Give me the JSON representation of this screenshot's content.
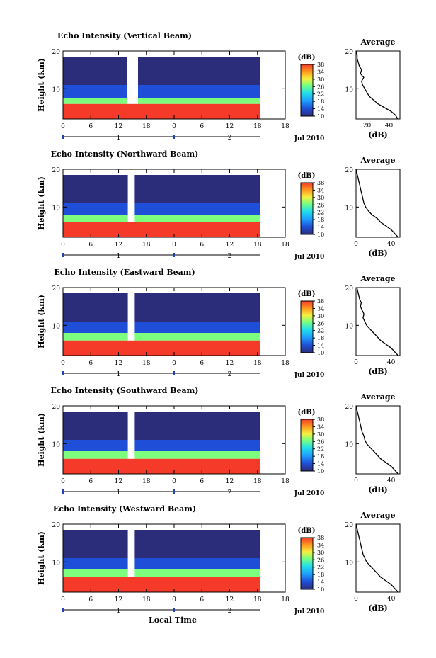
{
  "figure": {
    "xlabel_bottom": "Local Time",
    "date_label": "Jul 2010",
    "colorbar_unit": "(dB)",
    "average_title": "Average",
    "average_xlabel": "(dB)"
  },
  "chart_data": [
    {
      "type": "heatmap",
      "title": "Echo Intensity (Vertical Beam)",
      "ylabel": "Height (km)",
      "x_ticks": [
        "0",
        "6",
        "12",
        "18",
        "0",
        "6",
        "12",
        "18"
      ],
      "day_labels": [
        "1",
        "2"
      ],
      "y_ticks": [
        "10",
        "20"
      ],
      "ylim": [
        2,
        20
      ],
      "colorbar": {
        "range": [
          10,
          38
        ],
        "ticks": [
          "10",
          "14",
          "18",
          "22",
          "26",
          "30",
          "34",
          "38"
        ]
      },
      "missing_interval_hours": [
        13.8,
        16.2
      ],
      "color_bands": [
        {
          "from_km": 2,
          "to_km": 6,
          "value_db": 38
        },
        {
          "from_km": 6,
          "to_km": 7.5,
          "value_db": 26
        },
        {
          "from_km": 7.5,
          "to_km": 11,
          "value_db": 14
        },
        {
          "from_km": 11,
          "to_km": 20,
          "value_db": 10
        }
      ],
      "average_profile": {
        "x_ticks": [
          "20",
          "40"
        ],
        "xlim": [
          10,
          50
        ],
        "height_km": [
          2,
          3,
          4,
          5,
          6,
          7,
          8,
          9,
          10,
          11,
          12,
          13,
          14,
          15,
          16,
          17,
          18,
          19,
          20
        ],
        "value_db": [
          48,
          46,
          42,
          36,
          30,
          26,
          22,
          20,
          18,
          16,
          15,
          17,
          14,
          15,
          13,
          12,
          11,
          11,
          10
        ]
      }
    },
    {
      "type": "heatmap",
      "title": "Echo Intensity (Northward Beam)",
      "ylabel": "Height (km)",
      "x_ticks": [
        "0",
        "6",
        "12",
        "18",
        "0",
        "6",
        "12",
        "18"
      ],
      "day_labels": [
        "1",
        "2"
      ],
      "y_ticks": [
        "10",
        "20"
      ],
      "ylim": [
        2,
        20
      ],
      "colorbar": {
        "range": [
          10,
          38
        ],
        "ticks": [
          "10",
          "14",
          "18",
          "22",
          "26",
          "30",
          "34",
          "38"
        ]
      },
      "missing_interval_hours": [
        14.0,
        15.5
      ],
      "color_bands": [
        {
          "from_km": 2,
          "to_km": 6,
          "value_db": 38
        },
        {
          "from_km": 6,
          "to_km": 8,
          "value_db": 26
        },
        {
          "from_km": 8,
          "to_km": 11,
          "value_db": 14
        },
        {
          "from_km": 11,
          "to_km": 20,
          "value_db": 10
        }
      ],
      "average_profile": {
        "x_ticks": [
          "0",
          "40"
        ],
        "xlim": [
          0,
          50
        ],
        "height_km": [
          2,
          3,
          4,
          5,
          6,
          7,
          8,
          9,
          10,
          11,
          12,
          13,
          14,
          15,
          16,
          17,
          18,
          19,
          20
        ],
        "value_db": [
          48,
          44,
          40,
          34,
          28,
          24,
          18,
          14,
          11,
          9,
          8,
          7,
          6,
          5,
          4,
          3,
          2,
          1,
          0
        ]
      }
    },
    {
      "type": "heatmap",
      "title": "Echo Intensity (Eastward Beam)",
      "ylabel": "Height (km)",
      "x_ticks": [
        "0",
        "6",
        "12",
        "18",
        "0",
        "6",
        "12",
        "18"
      ],
      "day_labels": [
        "1",
        "2"
      ],
      "y_ticks": [
        "10",
        "20"
      ],
      "ylim": [
        2,
        20
      ],
      "colorbar": {
        "range": [
          10,
          38
        ],
        "ticks": [
          "10",
          "14",
          "18",
          "22",
          "26",
          "30",
          "34",
          "38"
        ]
      },
      "missing_interval_hours": [
        14.0,
        15.5
      ],
      "color_bands": [
        {
          "from_km": 2,
          "to_km": 6,
          "value_db": 38
        },
        {
          "from_km": 6,
          "to_km": 8,
          "value_db": 26
        },
        {
          "from_km": 8,
          "to_km": 11,
          "value_db": 14
        },
        {
          "from_km": 11,
          "to_km": 20,
          "value_db": 10
        }
      ],
      "average_profile": {
        "x_ticks": [
          "0",
          "40"
        ],
        "xlim": [
          0,
          50
        ],
        "height_km": [
          2,
          3,
          4,
          5,
          6,
          7,
          8,
          9,
          10,
          11,
          12,
          13,
          14,
          15,
          16,
          17,
          18,
          19,
          20
        ],
        "value_db": [
          48,
          44,
          40,
          34,
          28,
          24,
          20,
          16,
          12,
          10,
          8,
          9,
          7,
          5,
          6,
          4,
          3,
          2,
          1
        ]
      }
    },
    {
      "type": "heatmap",
      "title": "Echo Intensity (Southward Beam)",
      "ylabel": "Height (km)",
      "x_ticks": [
        "0",
        "6",
        "12",
        "18",
        "0",
        "6",
        "12",
        "18"
      ],
      "day_labels": [
        "1",
        "2"
      ],
      "y_ticks": [
        "10",
        "20"
      ],
      "ylim": [
        2,
        20
      ],
      "colorbar": {
        "range": [
          10,
          38
        ],
        "ticks": [
          "10",
          "14",
          "18",
          "22",
          "26",
          "30",
          "34",
          "38"
        ]
      },
      "missing_interval_hours": [
        14.0,
        15.5
      ],
      "color_bands": [
        {
          "from_km": 2,
          "to_km": 6,
          "value_db": 38
        },
        {
          "from_km": 6,
          "to_km": 8,
          "value_db": 26
        },
        {
          "from_km": 8,
          "to_km": 11,
          "value_db": 14
        },
        {
          "from_km": 11,
          "to_km": 20,
          "value_db": 10
        }
      ],
      "average_profile": {
        "x_ticks": [
          "0",
          "40"
        ],
        "xlim": [
          0,
          50
        ],
        "height_km": [
          2,
          3,
          4,
          5,
          6,
          7,
          8,
          9,
          10,
          11,
          12,
          13,
          14,
          15,
          16,
          17,
          18,
          19,
          20
        ],
        "value_db": [
          48,
          44,
          40,
          34,
          28,
          24,
          20,
          16,
          12,
          10,
          9,
          7,
          6,
          5,
          4,
          3,
          2,
          1,
          1
        ]
      }
    },
    {
      "type": "heatmap",
      "title": "Echo Intensity (Westward Beam)",
      "ylabel": "Height (km)",
      "x_ticks": [
        "0",
        "6",
        "12",
        "18",
        "0",
        "6",
        "12",
        "18"
      ],
      "day_labels": [
        "1",
        "2"
      ],
      "y_ticks": [
        "10",
        "20"
      ],
      "ylim": [
        2,
        20
      ],
      "colorbar": {
        "range": [
          10,
          38
        ],
        "ticks": [
          "10",
          "14",
          "18",
          "22",
          "26",
          "30",
          "34",
          "38"
        ]
      },
      "missing_interval_hours": [
        14.0,
        15.5
      ],
      "color_bands": [
        {
          "from_km": 2,
          "to_km": 6,
          "value_db": 38
        },
        {
          "from_km": 6,
          "to_km": 8,
          "value_db": 26
        },
        {
          "from_km": 8,
          "to_km": 11,
          "value_db": 14
        },
        {
          "from_km": 11,
          "to_km": 20,
          "value_db": 10
        }
      ],
      "average_profile": {
        "x_ticks": [
          "0",
          "40"
        ],
        "xlim": [
          0,
          50
        ],
        "height_km": [
          2,
          3,
          4,
          5,
          6,
          7,
          8,
          9,
          10,
          11,
          12,
          13,
          14,
          15,
          16,
          17,
          18,
          19,
          20
        ],
        "value_db": [
          48,
          44,
          40,
          34,
          28,
          24,
          20,
          16,
          12,
          10,
          8,
          7,
          6,
          5,
          4,
          3,
          2,
          1,
          1
        ]
      }
    }
  ]
}
